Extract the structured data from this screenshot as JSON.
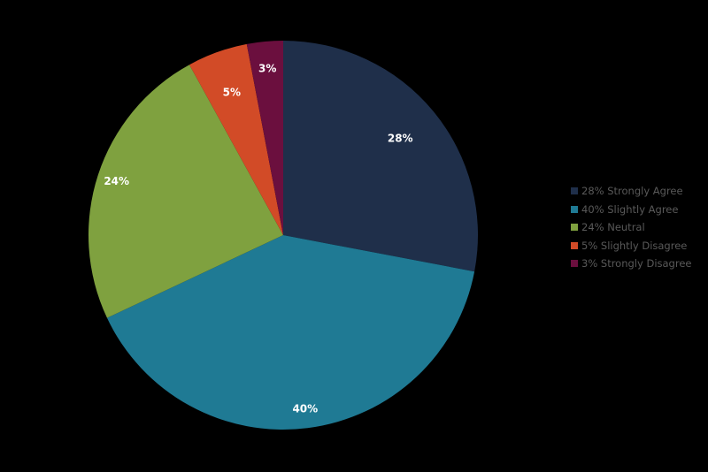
{
  "chart_data": {
    "type": "pie",
    "title": "",
    "categories": [
      "Strongly Agree",
      "Slightly Agree",
      "Neutral",
      "Slightly Disagree",
      "Strongly Disagree"
    ],
    "values": [
      28,
      40,
      24,
      5,
      3
    ],
    "colors": [
      "#1f2f4a",
      "#1f7a94",
      "#7fa13f",
      "#d24b27",
      "#6b0f3e"
    ],
    "data_labels": [
      "28%",
      "40%",
      "24%",
      "5%",
      "3%"
    ],
    "legend": {
      "position": "right",
      "entries": [
        "28% Strongly Agree",
        "40% Slightly Agree",
        "24% Neutral",
        "5% Slightly Disagree",
        "3% Strongly Disagree"
      ]
    },
    "start_angle": "12 o'clock, clockwise"
  }
}
